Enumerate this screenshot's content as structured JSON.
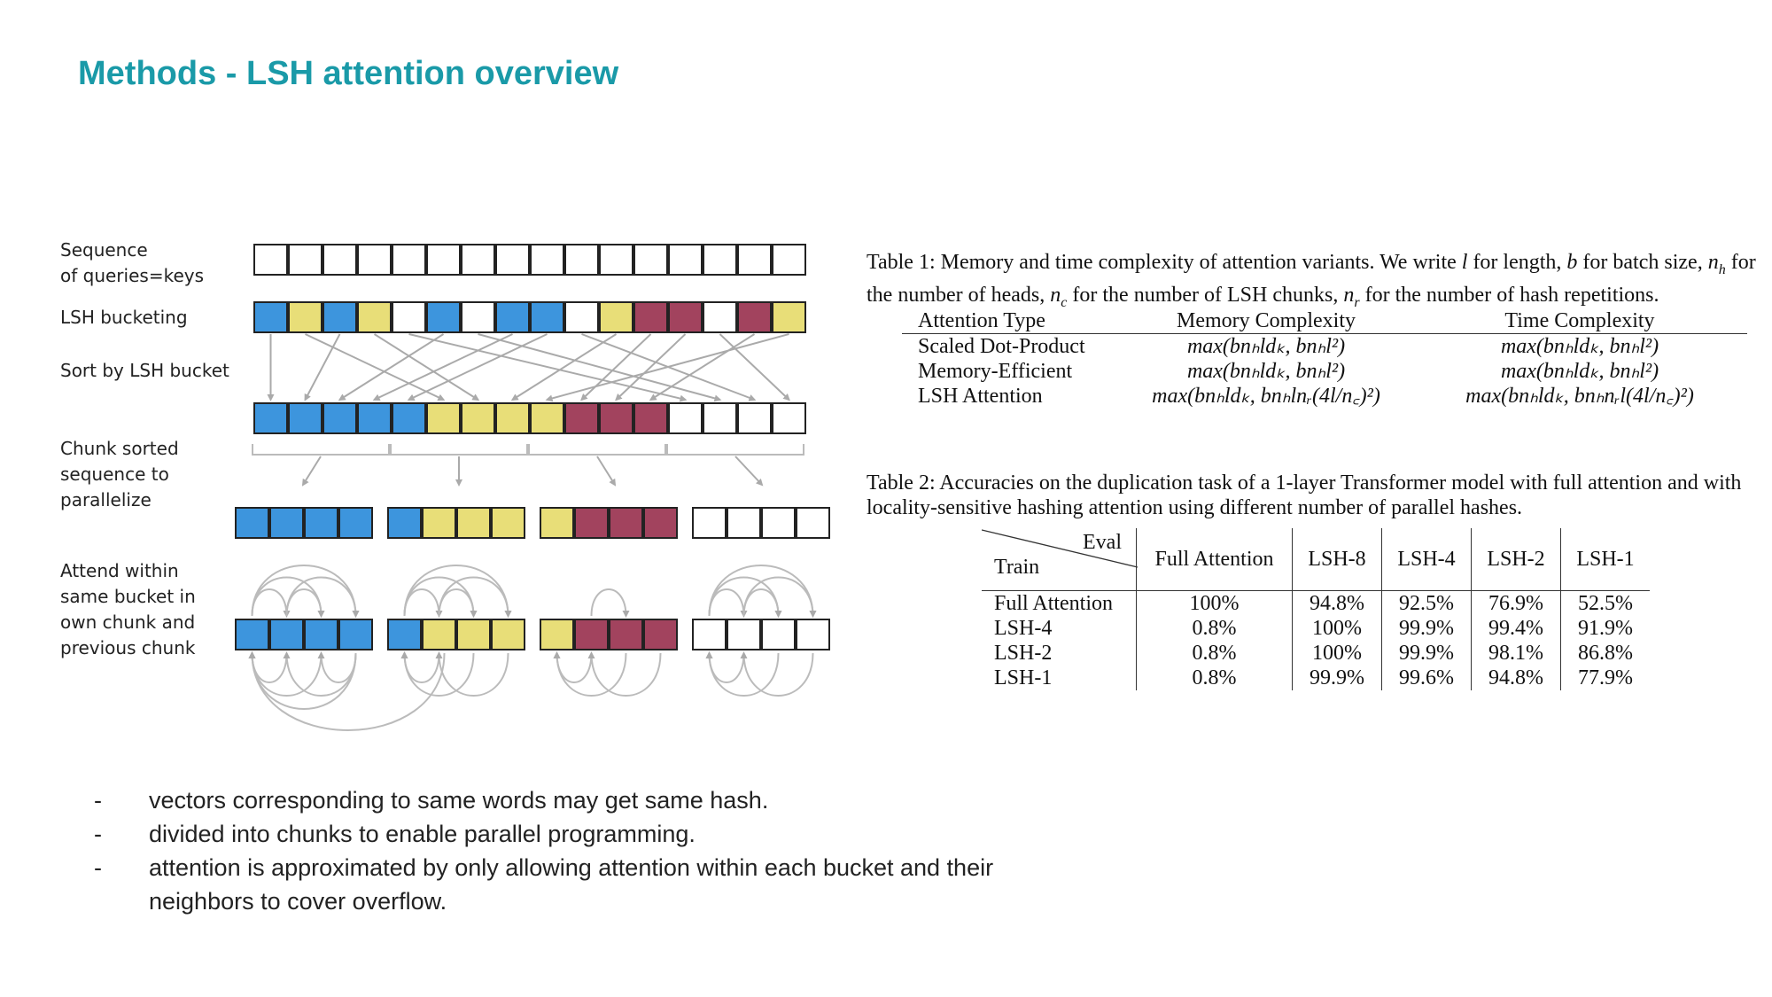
{
  "title": "Methods - LSH attention overview",
  "diagram": {
    "labels": [
      "Sequence\nof queries=keys",
      "LSH bucketing",
      "Sort by LSH bucket",
      "Chunk sorted\nsequence to\nparallelize",
      "Attend within\nsame bucket in\nown chunk and\nprevious chunk"
    ],
    "colors": {
      "b": "#3d95dd",
      "y": "#e8de78",
      "r": "#a2435e",
      "w": "#ffffff"
    },
    "rows": {
      "sequence": [
        "w",
        "w",
        "w",
        "w",
        "w",
        "w",
        "w",
        "w",
        "w",
        "w",
        "w",
        "w",
        "w",
        "w",
        "w",
        "w"
      ],
      "bucketed": [
        "b",
        "y",
        "b",
        "y",
        "w",
        "b",
        "w",
        "b",
        "b",
        "w",
        "y",
        "r",
        "r",
        "w",
        "r",
        "y"
      ],
      "sorted": [
        "b",
        "b",
        "b",
        "b",
        "b",
        "y",
        "y",
        "y",
        "y",
        "r",
        "r",
        "r",
        "w",
        "w",
        "w",
        "w"
      ],
      "chunks": [
        [
          "b",
          "b",
          "b",
          "b"
        ],
        [
          "b",
          "y",
          "y",
          "y"
        ],
        [
          "y",
          "r",
          "r",
          "r"
        ],
        [
          "w",
          "w",
          "w",
          "w"
        ]
      ]
    }
  },
  "table1": {
    "caption_parts": [
      "Table 1: Memory and time complexity of attention variants. We write ",
      "l",
      " for length, ",
      "b",
      " for batch size, ",
      "n",
      "h",
      " for the number of heads, ",
      "n",
      "c",
      " for the number of LSH chunks, ",
      "n",
      "r",
      " for the number of hash repetitions."
    ],
    "headers": [
      "Attention Type",
      "Memory Complexity",
      "Time Complexity"
    ],
    "rows": [
      [
        "Scaled Dot-Product",
        "max(bnₕldₖ, bnₕl²)",
        "max(bnₕldₖ, bnₕl²)"
      ],
      [
        "Memory-Efficient",
        "max(bnₕldₖ, bnₕl²)",
        "max(bnₕldₖ, bnₕl²)"
      ],
      [
        "LSH Attention",
        "max(bnₕldₖ, bnₕlnᵣ(4l/n꜀)²)",
        "max(bnₕldₖ, bnₕnᵣl(4l/n꜀)²)"
      ]
    ]
  },
  "table2": {
    "caption": "Table 2: Accuracies on the duplication task of a 1-layer Transformer model with full attention and with locality-sensitive hashing attention using different number of parallel hashes.",
    "corner_top": "Eval",
    "corner_bottom": "Train",
    "headers": [
      "Full Attention",
      "LSH-8",
      "LSH-4",
      "LSH-2",
      "LSH-1"
    ],
    "rows": [
      {
        "label": "Full Attention",
        "values": [
          "100%",
          "94.8%",
          "92.5%",
          "76.9%",
          "52.5%"
        ]
      },
      {
        "label": "LSH-4",
        "values": [
          "0.8%",
          "100%",
          "99.9%",
          "99.4%",
          "91.9%"
        ]
      },
      {
        "label": "LSH-2",
        "values": [
          "0.8%",
          "100%",
          "99.9%",
          "98.1%",
          "86.8%"
        ]
      },
      {
        "label": "LSH-1",
        "values": [
          "0.8%",
          "99.9%",
          "99.6%",
          "94.8%",
          "77.9%"
        ]
      }
    ]
  },
  "bullets": [
    {
      "dash": "-",
      "text": "vectors corresponding to same words may get same hash."
    },
    {
      "dash": "-",
      "text": "divided into chunks to enable parallel programming."
    },
    {
      "dash": "-",
      "text": "attention is approximated by only allowing attention within each bucket and their neighbors to cover overflow."
    }
  ]
}
